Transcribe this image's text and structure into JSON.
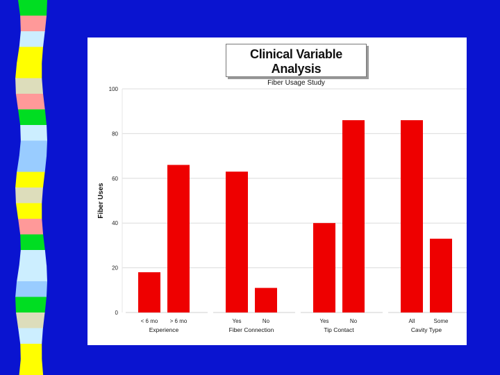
{
  "colors": {
    "background": "#0a14d0",
    "panel": "#ffffff",
    "bar": "#ee0000",
    "stripe_palette": [
      "#ffff00",
      "#ff9999",
      "#cceeff",
      "#00dd22",
      "#ddddbb",
      "#99ccff"
    ]
  },
  "stripe_sequence": [
    "#00dd22",
    "#ff9999",
    "#cceeff",
    "#ffff00",
    "#ffff00",
    "#ddddbb",
    "#ff9999",
    "#00dd22",
    "#cceeff",
    "#99ccff",
    "#99ccff",
    "#ffff00",
    "#ddddbb",
    "#ffff00",
    "#ff9999",
    "#00dd22",
    "#cceeff",
    "#cceeff",
    "#99ccff",
    "#00dd22",
    "#ddddbb",
    "#cceeff",
    "#ffff00",
    "#ffff00"
  ],
  "chart_data": {
    "type": "bar",
    "title": "Clinical Variable Analysis",
    "subtitle": "Fiber Usage Study",
    "ylabel": "Fiber Uses",
    "ylim": [
      0,
      100
    ],
    "yticks": [
      "0",
      "20",
      "40",
      "60",
      "80",
      "100"
    ],
    "grid": true,
    "groups": [
      {
        "name": "Experience",
        "categories": [
          "< 6 mo",
          "> 6 mo"
        ],
        "values": [
          18,
          66
        ]
      },
      {
        "name": "Fiber Connection",
        "categories": [
          "Yes",
          "No"
        ],
        "values": [
          63,
          11
        ]
      },
      {
        "name": "Tip Contact",
        "categories": [
          "Yes",
          "No"
        ],
        "values": [
          40,
          86
        ]
      },
      {
        "name": "Cavity Type",
        "categories": [
          "All",
          "Some"
        ],
        "values": [
          86,
          33
        ]
      }
    ]
  }
}
